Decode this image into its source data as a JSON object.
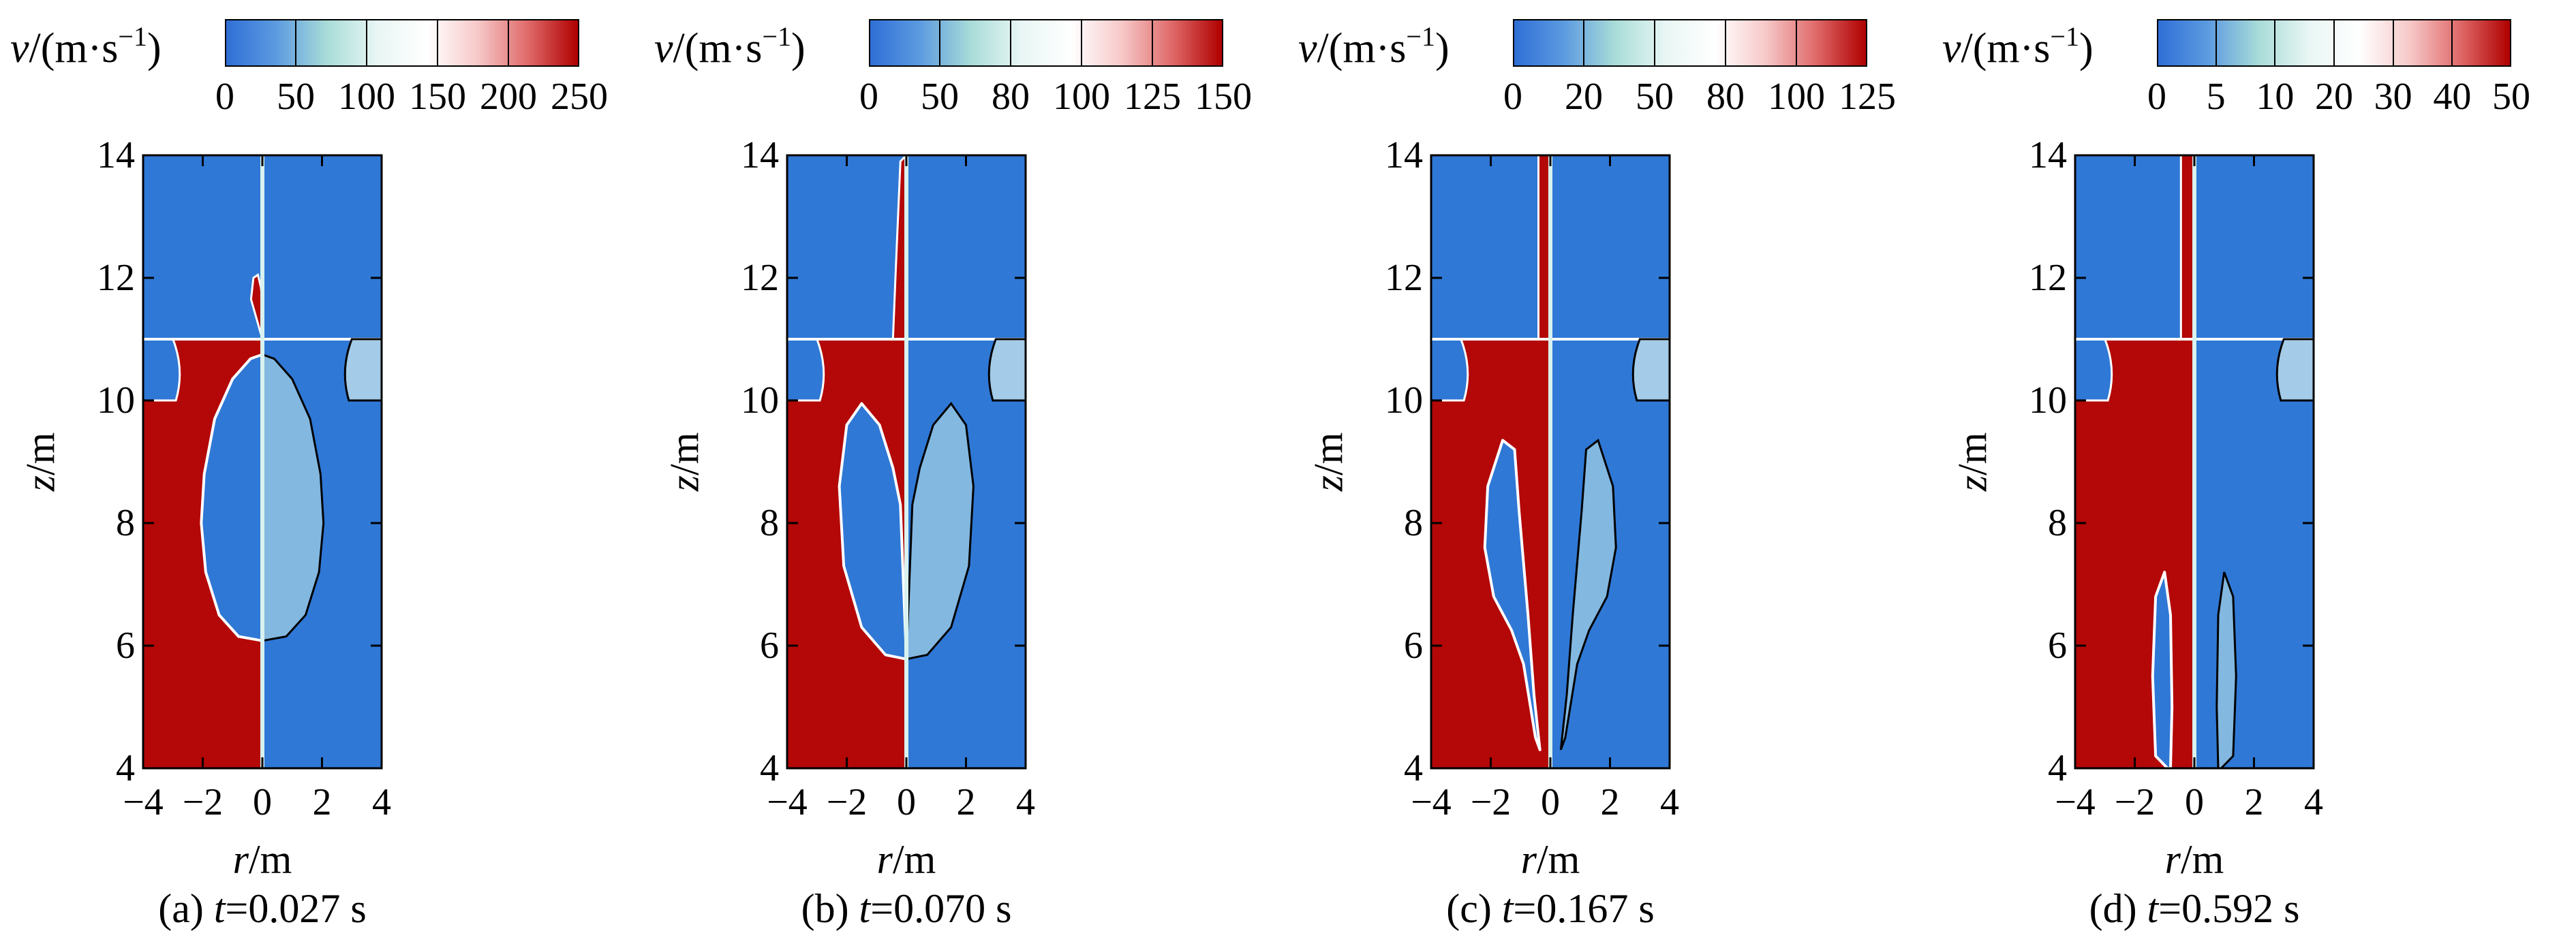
{
  "figure": {
    "colors": {
      "liquid": "#b40707",
      "gas": "#2f78d6",
      "mid": "#c8ecea",
      "low": "#3a78d8",
      "high": "#b00000"
    }
  },
  "chart_data": [
    {
      "type": "heatmap",
      "panel_id": "a",
      "caption_prefix": "(a) ",
      "caption_var": "t",
      "caption_value": "=0.027 s",
      "colorbar_label_var": "v",
      "colorbar_label_unit": "/(m·s",
      "colorbar_label_exp": "−1",
      "colorbar_label_close": ")",
      "colorbar_ticks": [
        "0",
        "50",
        "100",
        "150",
        "200",
        "250"
      ],
      "colorbar_range": [
        0,
        250
      ],
      "xlabel_var": "r",
      "xlabel_unit": "/m",
      "ylabel_var": "z",
      "ylabel_unit": "/m",
      "xticks": [
        "−4",
        "−2",
        "0",
        "2",
        "4"
      ],
      "yticks": [
        "4",
        "6",
        "8",
        "10",
        "12",
        "14"
      ],
      "xlim": [
        -4,
        4
      ],
      "ylim": [
        4,
        14
      ],
      "bubble_profile": [
        [
          0,
          10.75
        ],
        [
          -0.4,
          10.68
        ],
        [
          -1.0,
          10.35
        ],
        [
          -1.6,
          9.7
        ],
        [
          -1.95,
          8.8
        ],
        [
          -2.05,
          8.0
        ],
        [
          -1.9,
          7.2
        ],
        [
          -1.45,
          6.5
        ],
        [
          -0.8,
          6.15
        ],
        [
          0,
          6.08
        ]
      ],
      "plume": [
        [
          -0.38,
          11.65
        ],
        [
          -0.3,
          12.0
        ],
        [
          -0.15,
          12.05
        ],
        [
          -0.05,
          11.85
        ],
        [
          0,
          11.6
        ]
      ]
    },
    {
      "type": "heatmap",
      "panel_id": "b",
      "caption_prefix": "(b) ",
      "caption_var": "t",
      "caption_value": "=0.070 s",
      "colorbar_label_var": "v",
      "colorbar_label_unit": "/(m·s",
      "colorbar_label_exp": "−1",
      "colorbar_label_close": ")",
      "colorbar_ticks": [
        "0",
        "50",
        "80",
        "100",
        "125",
        "150"
      ],
      "colorbar_range": [
        0,
        150
      ],
      "xlabel_var": "r",
      "xlabel_unit": "/m",
      "ylabel_var": "z",
      "ylabel_unit": "/m",
      "xticks": [
        "−4",
        "−2",
        "0",
        "2",
        "4"
      ],
      "yticks": [
        "4",
        "6",
        "8",
        "10",
        "12",
        "14"
      ],
      "xlim": [
        -4,
        4
      ],
      "ylim": [
        4,
        14
      ],
      "bubble_profile": [
        [
          -0.2,
          8.3
        ],
        [
          -0.45,
          8.9
        ],
        [
          -0.9,
          9.6
        ],
        [
          -1.5,
          9.95
        ],
        [
          -2.0,
          9.6
        ],
        [
          -2.25,
          8.6
        ],
        [
          -2.1,
          7.3
        ],
        [
          -1.5,
          6.3
        ],
        [
          -0.7,
          5.85
        ],
        [
          0,
          5.78
        ]
      ],
      "plume": [
        [
          -0.45,
          11.0
        ],
        [
          -0.35,
          12.2
        ],
        [
          -0.2,
          13.9
        ],
        [
          0,
          14.0
        ]
      ]
    },
    {
      "type": "heatmap",
      "panel_id": "c",
      "caption_prefix": "(c) ",
      "caption_var": "t",
      "caption_value": "=0.167 s",
      "colorbar_label_var": "v",
      "colorbar_label_unit": "/(m·s",
      "colorbar_label_exp": "−1",
      "colorbar_label_close": ")",
      "colorbar_ticks": [
        "0",
        "20",
        "50",
        "80",
        "100",
        "125"
      ],
      "colorbar_range": [
        0,
        125
      ],
      "xlabel_var": "r",
      "xlabel_unit": "/m",
      "ylabel_var": "z",
      "ylabel_unit": "/m",
      "xticks": [
        "−4",
        "−2",
        "0",
        "2",
        "4"
      ],
      "yticks": [
        "4",
        "6",
        "8",
        "10",
        "12",
        "14"
      ],
      "xlim": [
        -4,
        4
      ],
      "ylim": [
        4,
        14
      ],
      "bubble_profile": [
        [
          -0.35,
          4.3
        ],
        [
          -0.55,
          5.2
        ],
        [
          -0.75,
          6.5
        ],
        [
          -1.05,
          8.2
        ],
        [
          -1.2,
          9.2
        ],
        [
          -1.6,
          9.35
        ],
        [
          -2.1,
          8.6
        ],
        [
          -2.2,
          7.6
        ],
        [
          -1.9,
          6.8
        ],
        [
          -1.3,
          6.25
        ],
        [
          -0.9,
          5.7
        ],
        [
          -0.5,
          4.5
        ]
      ],
      "plume": [
        [
          -0.4,
          11.0
        ],
        [
          -0.4,
          14.0
        ]
      ]
    },
    {
      "type": "heatmap",
      "panel_id": "d",
      "caption_prefix": "(d) ",
      "caption_var": "t",
      "caption_value": "=0.592 s",
      "colorbar_label_var": "v",
      "colorbar_label_unit": "/(m·s",
      "colorbar_label_exp": "−1",
      "colorbar_label_close": ")",
      "colorbar_ticks": [
        "0",
        "5",
        "10",
        "20",
        "30",
        "40",
        "50"
      ],
      "colorbar_range": [
        0,
        50
      ],
      "xlabel_var": "r",
      "xlabel_unit": "/m",
      "ylabel_var": "z",
      "ylabel_unit": "/m",
      "xticks": [
        "−4",
        "−2",
        "0",
        "2",
        "4"
      ],
      "yticks": [
        "4",
        "6",
        "8",
        "10",
        "12",
        "14"
      ],
      "xlim": [
        -4,
        4
      ],
      "ylim": [
        4,
        14
      ],
      "bubble_profile": [
        [
          -0.9,
          4.0
        ],
        [
          -1.3,
          4.2
        ],
        [
          -1.4,
          5.5
        ],
        [
          -1.3,
          6.8
        ],
        [
          -1.0,
          7.2
        ],
        [
          -0.8,
          6.5
        ],
        [
          -0.75,
          5.0
        ],
        [
          -0.8,
          4.0
        ]
      ],
      "plume": [
        [
          -0.45,
          11.0
        ],
        [
          -0.45,
          14.0
        ]
      ]
    }
  ]
}
